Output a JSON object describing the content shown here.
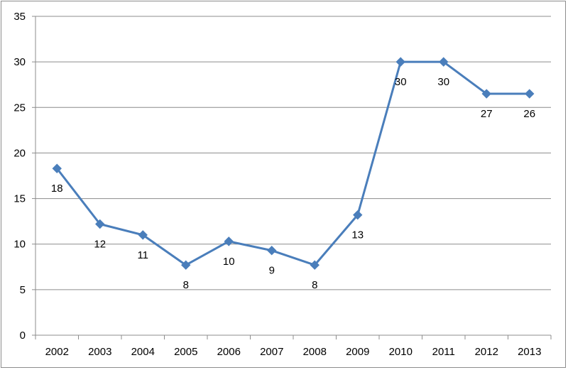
{
  "chart_data": {
    "type": "line",
    "title": "",
    "xlabel": "",
    "ylabel": "",
    "categories": [
      "2002",
      "2003",
      "2004",
      "2005",
      "2006",
      "2007",
      "2008",
      "2009",
      "2010",
      "2011",
      "2012",
      "2013"
    ],
    "series": [
      {
        "values": [
          18.3,
          12.2,
          11.0,
          7.7,
          10.3,
          9.3,
          7.7,
          13.2,
          30.0,
          30.0,
          26.5,
          26.5
        ],
        "data_labels": [
          "18",
          "12",
          "11",
          "8",
          "10",
          "9",
          "8",
          "13",
          "30",
          "30",
          "27",
          "26"
        ],
        "color": "#4a7ebb",
        "marker": "diamond"
      }
    ],
    "ylim": [
      0,
      35
    ],
    "yticks": [
      "0",
      "5",
      "10",
      "15",
      "20",
      "25",
      "30",
      "35"
    ],
    "grid": true,
    "legend": "none"
  }
}
